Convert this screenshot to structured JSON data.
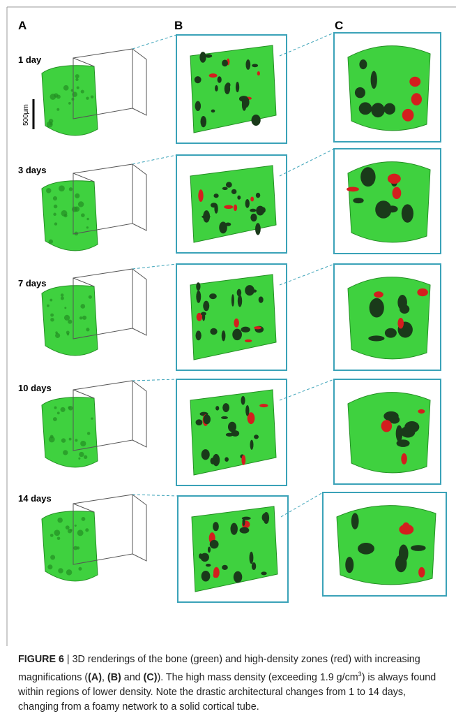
{
  "panel_labels": [
    "A",
    "B",
    "C"
  ],
  "rows": [
    {
      "label": "1 day"
    },
    {
      "label": "3 days"
    },
    {
      "label": "7 days"
    },
    {
      "label": "10 days"
    },
    {
      "label": "14 days"
    }
  ],
  "scale_bar": "500μm",
  "caption": {
    "segments": [
      "FIGURE 6",
      " | 3D renderings of the bone (green) and high-density zones (red) with increasing magnifications (",
      "(A)",
      ", ",
      "(B)",
      " and ",
      "(C)",
      "). The high mass density (exceeding 1.9 g/cm",
      "3",
      ") is always found within regions of lower density. Note the drastic architectural changes from 1 to 14 days, changing from a foamy network to a solid cortical tube."
    ]
  }
}
